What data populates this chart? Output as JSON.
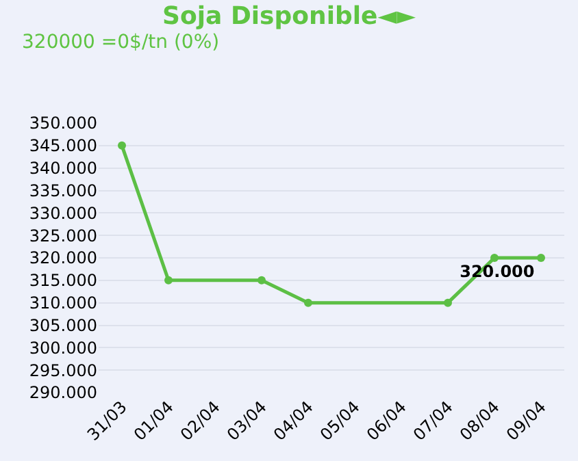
{
  "chart_data": {
    "type": "line",
    "title": "Soja Disponible◄►",
    "subtitle": "320000 =0$/tn (0%)",
    "categories": [
      "31/03",
      "01/04",
      "02/04",
      "03/04",
      "04/04",
      "05/04",
      "06/04",
      "07/04",
      "08/04",
      "09/04"
    ],
    "series": [
      {
        "color": "#5cbf45",
        "x": [
          "31/03",
          "01/04",
          "03/04",
          "04/04",
          "07/04",
          "08/04",
          "09/04"
        ],
        "values": [
          345000,
          315000,
          315000,
          310000,
          310000,
          320000,
          320000
        ],
        "value_labels": [
          null,
          null,
          null,
          null,
          null,
          null,
          "320.000"
        ]
      }
    ],
    "ylim": [
      290000,
      350000
    ],
    "yticks": [
      {
        "value": 290000,
        "label": "290.000"
      },
      {
        "value": 295000,
        "label": "295.000"
      },
      {
        "value": 300000,
        "label": "300.000"
      },
      {
        "value": 305000,
        "label": "305.000"
      },
      {
        "value": 310000,
        "label": "310.000"
      },
      {
        "value": 315000,
        "label": "315.000"
      },
      {
        "value": 320000,
        "label": "320.000"
      },
      {
        "value": 325000,
        "label": "325.000"
      },
      {
        "value": 330000,
        "label": "330.000"
      },
      {
        "value": 335000,
        "label": "335.000"
      },
      {
        "value": 340000,
        "label": "340.000"
      },
      {
        "value": 345000,
        "label": "345.000"
      },
      {
        "value": 350000,
        "label": "350.000"
      }
    ],
    "grid": "y",
    "marker": "circle",
    "line_style": "solid"
  }
}
